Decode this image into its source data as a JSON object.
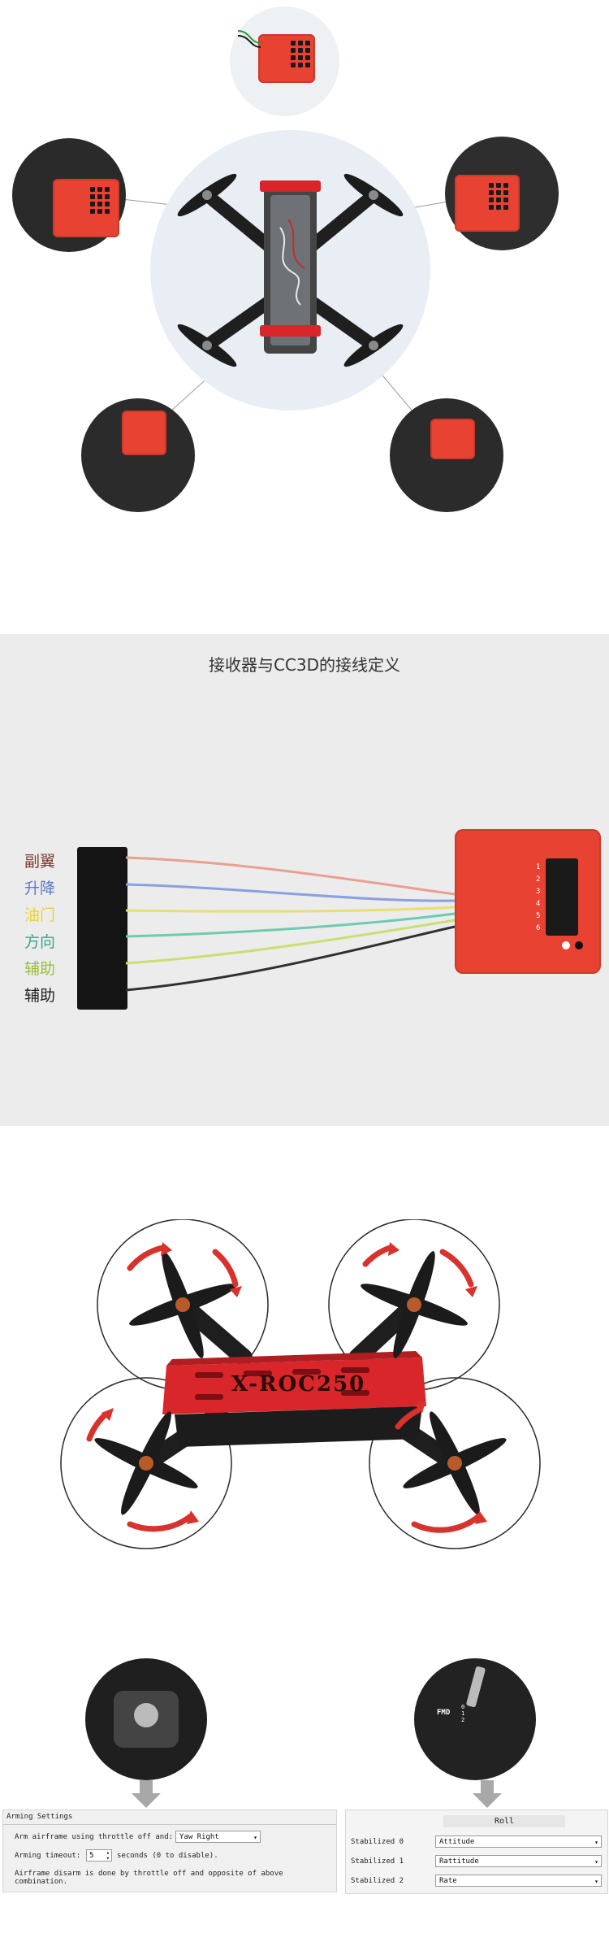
{
  "receiver_section": {
    "title": "接收器与CC3D的接线定义",
    "channels": [
      "副翼",
      "升降",
      "油门",
      "方向",
      "辅助",
      "辅助"
    ],
    "pin_numbers": [
      "1",
      "2",
      "3",
      "4",
      "5",
      "6"
    ]
  },
  "drone_section": {
    "frame_label": "X-ROC250"
  },
  "arming_settings": {
    "title": "Arming Settings",
    "arm_label": "Arm airframe using throttle off and:",
    "arm_value": "Yaw Right",
    "timeout_label": "Arming timeout:",
    "timeout_value": "5",
    "timeout_suffix": "seconds (0 to disable).",
    "disarm_note": "Airframe disarm is done by throttle off and opposite of above combination."
  },
  "stabilization": {
    "header": "Roll",
    "rows": [
      {
        "label": "Stabilized 0",
        "value": "Attitude"
      },
      {
        "label": "Stabilized 1",
        "value": "Rattitude"
      },
      {
        "label": "Stabilized 2",
        "value": "Rate"
      }
    ]
  },
  "transmitter": {
    "switch_label": "FMD",
    "switch_positions": [
      "0",
      "1",
      "2"
    ]
  },
  "colors": {
    "board_red": "#e84232",
    "frame_red": "#d8262a",
    "arrow_red": "#d9312c",
    "carbon": "#1e1e1e",
    "channel_colors": [
      "#7a3b2e",
      "#5a78c8",
      "#e8d23a",
      "#3aa38a",
      "#9cbf3a",
      "#222222"
    ]
  }
}
